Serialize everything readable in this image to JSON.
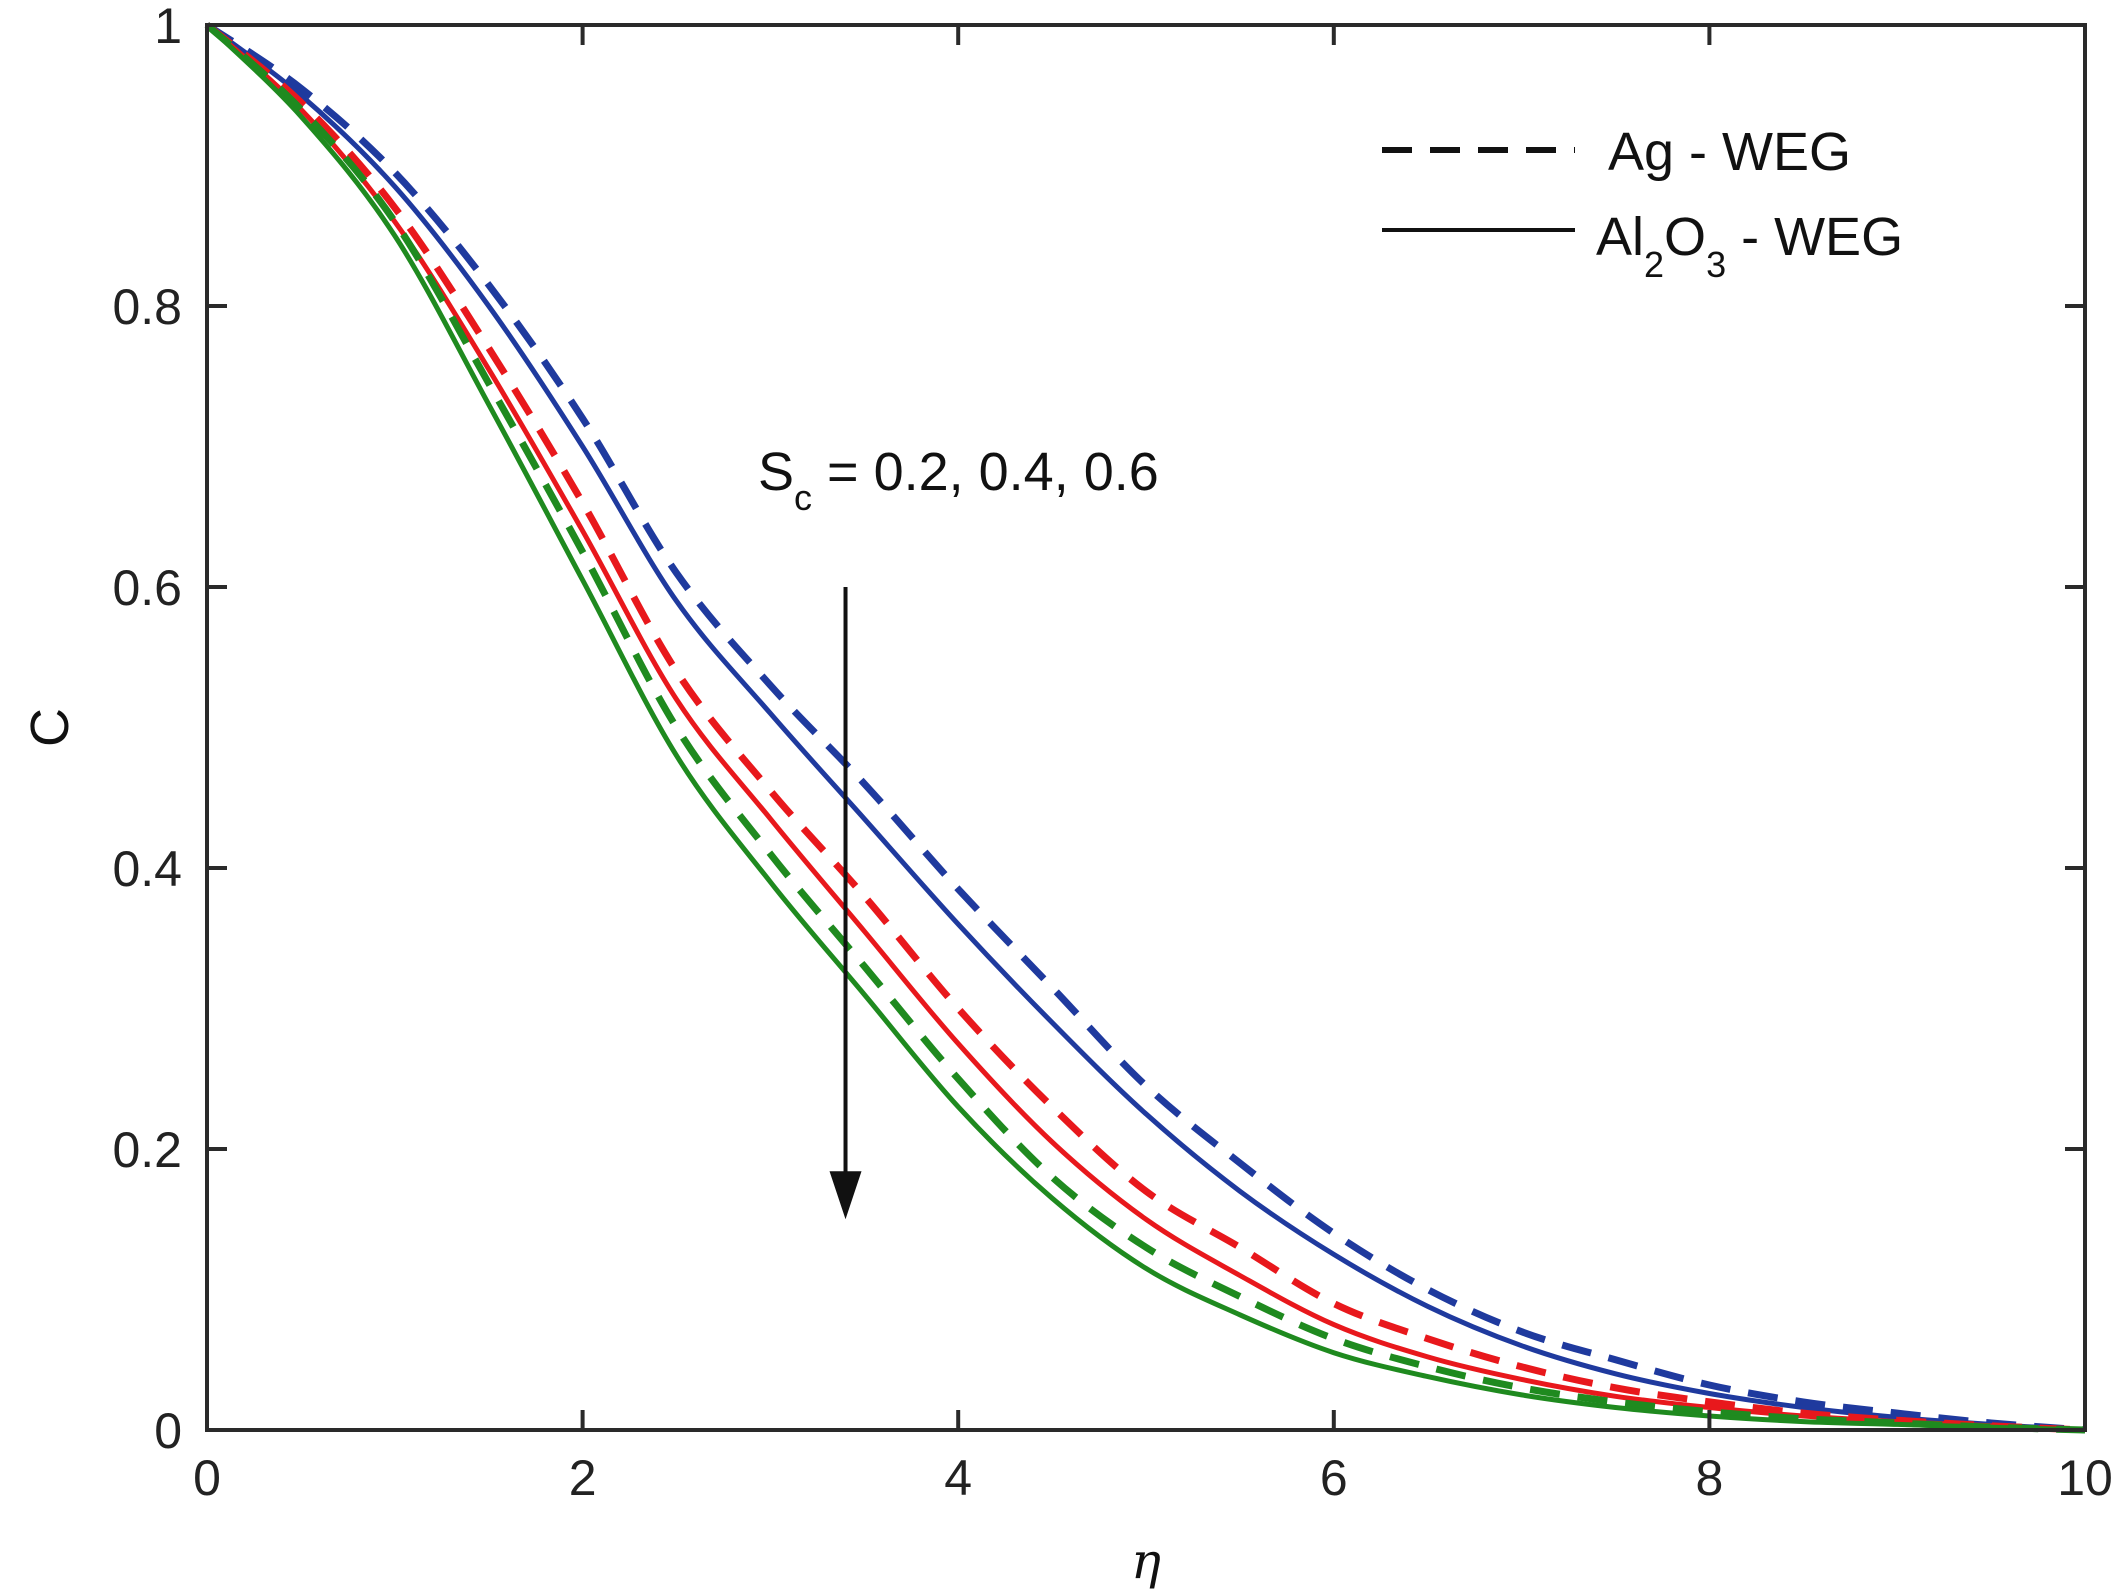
{
  "chart_data": {
    "type": "line",
    "title": "",
    "xlabel": "η",
    "ylabel": "C",
    "xlim": [
      0,
      10
    ],
    "ylim": [
      0,
      1
    ],
    "xticks": [
      "0",
      "2",
      "4",
      "6",
      "8",
      "10"
    ],
    "yticks": [
      "0",
      "0.2",
      "0.4",
      "0.6",
      "0.8",
      "1"
    ],
    "grid": false,
    "legend": {
      "placement": "top-right",
      "entries": [
        {
          "style": "dashed",
          "text": "Ag - WEG"
        },
        {
          "style": "solid",
          "text_main": "Al",
          "sub1": "2",
          "text_mid": "O",
          "sub2": "3",
          "text_end": " - WEG"
        }
      ]
    },
    "annotation": {
      "prefix": "S",
      "sub": "c",
      "rest": " = 0.2, 0.4, 0.6",
      "arrow_x": 3.4,
      "arrow_from_y": 0.6,
      "arrow_to_y": 0.15
    },
    "x": [
      0,
      0.5,
      1,
      1.5,
      2,
      2.5,
      3,
      3.5,
      4,
      4.5,
      5,
      5.5,
      6,
      6.5,
      7,
      7.5,
      8,
      8.5,
      9,
      9.5,
      10
    ],
    "series": [
      {
        "fluid": "Ag",
        "Sc": 0.2,
        "color": "#1f3a9e",
        "dash": true,
        "values": [
          1.0,
          0.955,
          0.895,
          0.815,
          0.72,
          0.61,
          0.53,
          0.46,
          0.385,
          0.315,
          0.245,
          0.19,
          0.14,
          0.1,
          0.07,
          0.05,
          0.032,
          0.02,
          0.012,
          0.005,
          0.0
        ]
      },
      {
        "fluid": "Al2O3",
        "Sc": 0.2,
        "color": "#1f3a9e",
        "dash": false,
        "values": [
          1.0,
          0.95,
          0.885,
          0.8,
          0.7,
          0.59,
          0.51,
          0.435,
          0.36,
          0.29,
          0.225,
          0.17,
          0.125,
          0.088,
          0.06,
          0.04,
          0.026,
          0.016,
          0.009,
          0.004,
          0.0
        ]
      },
      {
        "fluid": "Ag",
        "Sc": 0.4,
        "color": "#e8181c",
        "dash": true,
        "values": [
          1.0,
          0.945,
          0.87,
          0.77,
          0.66,
          0.54,
          0.455,
          0.38,
          0.3,
          0.23,
          0.17,
          0.13,
          0.09,
          0.065,
          0.045,
          0.03,
          0.02,
          0.012,
          0.007,
          0.003,
          0.0
        ]
      },
      {
        "fluid": "Al2O3",
        "Sc": 0.4,
        "color": "#e8181c",
        "dash": false,
        "values": [
          1.0,
          0.94,
          0.86,
          0.755,
          0.64,
          0.52,
          0.435,
          0.355,
          0.275,
          0.205,
          0.15,
          0.11,
          0.075,
          0.052,
          0.036,
          0.024,
          0.016,
          0.01,
          0.006,
          0.003,
          0.0
        ]
      },
      {
        "fluid": "Ag",
        "Sc": 0.6,
        "color": "#1f8a1f",
        "dash": true,
        "values": [
          1.0,
          0.94,
          0.86,
          0.745,
          0.625,
          0.5,
          0.41,
          0.33,
          0.25,
          0.18,
          0.13,
          0.095,
          0.065,
          0.045,
          0.03,
          0.02,
          0.013,
          0.008,
          0.005,
          0.002,
          0.0
        ]
      },
      {
        "fluid": "Al2O3",
        "Sc": 0.6,
        "color": "#1f8a1f",
        "dash": false,
        "values": [
          1.0,
          0.935,
          0.85,
          0.73,
          0.605,
          0.48,
          0.39,
          0.31,
          0.23,
          0.165,
          0.115,
          0.082,
          0.055,
          0.038,
          0.025,
          0.016,
          0.01,
          0.006,
          0.004,
          0.002,
          0.0
        ]
      }
    ]
  }
}
